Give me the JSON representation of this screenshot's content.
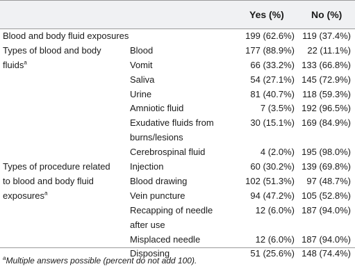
{
  "header": {
    "col_yes": "Yes (%)",
    "col_no": "No (%)"
  },
  "rows": [
    {
      "c1": "Blood and body fluid exposures",
      "c2": "",
      "yes": "199 (62.6%)",
      "no": "119 (37.4%)"
    },
    {
      "c1": "Types of blood and body",
      "c2": "Blood",
      "yes": "177 (88.9%)",
      "no": "22 (11.1%)"
    },
    {
      "c1": "fluids",
      "c2": "Vomit",
      "yes": "66 (33.2%)",
      "no": "133 (66.8%)"
    },
    {
      "c1": "",
      "c2": "Saliva",
      "yes": "54 (27.1%)",
      "no": "145 (72.9%)"
    },
    {
      "c1": "",
      "c2": "Urine",
      "yes": "81 (40.7%)",
      "no": "118 (59.3%)"
    },
    {
      "c1": "",
      "c2": "Amniotic fluid",
      "yes": "7 (3.5%)",
      "no": "192 (96.5%)"
    },
    {
      "c1": "",
      "c2": "Exudative fluids from",
      "c2b": "burns/lesions",
      "yes": "30 (15.1%)",
      "no": "169 (84.9%)"
    },
    {
      "c1": "",
      "c2": "Cerebrospinal fluid",
      "yes": "4 (2.0%)",
      "no": "195 (98.0%)"
    },
    {
      "c1": "Types of procedure related",
      "c2": "Injection",
      "yes": "60 (30.2%)",
      "no": "139 (69.8%)"
    },
    {
      "c1": "to blood and body fluid",
      "c2": "Blood drawing",
      "yes": "102 (51.3%)",
      "no": "97 (48.7%)"
    },
    {
      "c1": "exposures",
      "c2": "Vein puncture",
      "yes": "94 (47.2%)",
      "no": "105 (52.8%)"
    },
    {
      "c1": "",
      "c2": "Recapping of needle",
      "c2b": "after use",
      "yes": "12 (6.0%)",
      "no": "187 (94.0%)"
    },
    {
      "c1": "",
      "c2": "Misplaced needle",
      "yes": "12 (6.0%)",
      "no": "187 (94.0%)"
    },
    {
      "c1": "",
      "c2": "Disposing",
      "yes": "51 (25.6%)",
      "no": "148 (74.4%)"
    }
  ],
  "footnote_marker": "a",
  "footnote_text": "Multiple answers possible (percent do not add 100)."
}
